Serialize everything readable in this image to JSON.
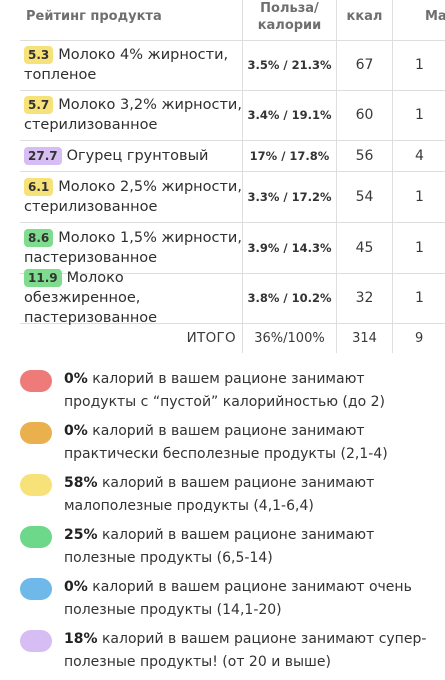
{
  "table": {
    "headers": {
      "name": "Рейтинг продукта",
      "ratio_line1": "Польза/",
      "ratio_line2": "калории",
      "kcal": "ккал",
      "mass": "Ма"
    },
    "rows": [
      {
        "score": "5.3",
        "score_color": "#f7e27a",
        "name_line1": "Молоко 4% жирности,",
        "name_line2": "топленое",
        "ratio": "3.5% / 21.3%",
        "kcal": "67",
        "mass": "1"
      },
      {
        "score": "5.7",
        "score_color": "#f7e27a",
        "name_line1": "Молоко 3,2% жирности,",
        "name_line2": "стерилизованное",
        "ratio": "3.4% / 19.1%",
        "kcal": "60",
        "mass": "1"
      },
      {
        "score": "27.7",
        "score_color": "#d6bdf3",
        "name_line1": "Огурец грунтовый",
        "name_line2": "",
        "ratio": "17% / 17.8%",
        "kcal": "56",
        "mass": "4"
      },
      {
        "score": "6.1",
        "score_color": "#f7e27a",
        "name_line1": "Молоко 2,5% жирности,",
        "name_line2": "стерилизованное",
        "ratio": "3.3% / 17.2%",
        "kcal": "54",
        "mass": "1"
      },
      {
        "score": "8.6",
        "score_color": "#7fdc8e",
        "name_line1": "Молоко 1,5% жирности,",
        "name_line2": "пастеризованное",
        "ratio": "3.9% / 14.3%",
        "kcal": "45",
        "mass": "1"
      },
      {
        "score": "11.9",
        "score_color": "#7fdc8e",
        "name_line1": "Молоко обезжиренное,",
        "name_line2": "пастеризованное",
        "ratio": "3.8% / 10.2%",
        "kcal": "32",
        "mass": "1"
      }
    ],
    "total": {
      "label": "ИТОГО",
      "ratio": "36%/100%",
      "kcal": "314",
      "mass": "9"
    }
  },
  "legend": [
    {
      "color": "#ef7a7a",
      "percent": "0%",
      "text": " калорий в вашем рационе занимают продукты с “пустой” калорийностью (до 2)"
    },
    {
      "color": "#ebb04e",
      "percent": "0%",
      "text": " калорий в вашем рационе занимают практически бесполезные продукты (2,1-4)"
    },
    {
      "color": "#f7e27a",
      "percent": "58%",
      "text": " калорий в вашем рационе занимают малополезные продукты (4,1-6,4)"
    },
    {
      "color": "#6ed88a",
      "percent": "25%",
      "text": " калорий в вашем рационе занимают полезные продукты (6,5-14)"
    },
    {
      "color": "#6fb9ea",
      "percent": "0%",
      "text": " калорий в вашем рационе занимают очень полезные продукты (14,1-20)"
    },
    {
      "color": "#d6bdf3",
      "percent": "18%",
      "text": " калорий в вашем рационе занимают супер-полезные продукты! (от 20 и выше)"
    }
  ]
}
